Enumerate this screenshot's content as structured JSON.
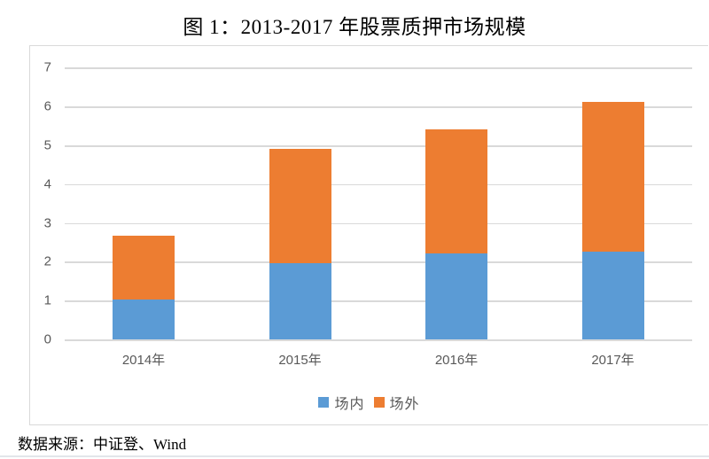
{
  "title": "图 1：2013-2017 年股票质押市场规模",
  "source_note": "数据来源：中证登、Wind",
  "colors": {
    "series_in": "#5b9bd5",
    "series_out": "#ed7d31",
    "gridline": "#d9d9d9",
    "axis_text": "#595959",
    "chart_border": "#d9d9d9",
    "bottom_rule": "#e2e6ea"
  },
  "chart_data": {
    "type": "bar",
    "stacked": true,
    "title": "图 1：2013-2017 年股票质押市场规模",
    "categories": [
      "2014年",
      "2015年",
      "2016年",
      "2017年"
    ],
    "series": [
      {
        "name": "场内",
        "color": "#5b9bd5",
        "values": [
          1.02,
          1.96,
          2.22,
          2.25
        ]
      },
      {
        "name": "场外",
        "color": "#ed7d31",
        "values": [
          1.65,
          2.94,
          3.2,
          3.87
        ]
      }
    ],
    "totals": [
      2.67,
      4.9,
      5.42,
      6.12
    ],
    "xlabel": "",
    "ylabel": "",
    "ylim": [
      0,
      7
    ],
    "ytick_step": 1,
    "yticks": [
      "0",
      "1",
      "2",
      "3",
      "4",
      "5",
      "6",
      "7"
    ],
    "grid": true,
    "legend_position": "bottom"
  }
}
